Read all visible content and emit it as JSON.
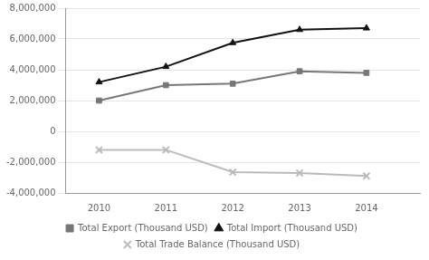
{
  "chart_data": {
    "type": "line",
    "x": [
      2010,
      2011,
      2012,
      2013,
      2014
    ],
    "series": [
      {
        "name": "Total Export (Thousand USD)",
        "color": "#777777",
        "marker": "square",
        "values": [
          2000000,
          3000000,
          3100000,
          3900000,
          3800000
        ]
      },
      {
        "name": "Total Import (Thousand USD)",
        "color": "#111111",
        "marker": "triangle",
        "values": [
          3200000,
          4200000,
          5750000,
          6600000,
          6700000
        ]
      },
      {
        "name": "Total Trade Balance (Thousand USD)",
        "color": "#bbbbbb",
        "marker": "x",
        "values": [
          -1200000,
          -1200000,
          -2650000,
          -2700000,
          -2900000
        ]
      }
    ],
    "xlim": [
      2009.5,
      2014.8
    ],
    "xticks": [
      2010,
      2011,
      2012,
      2013,
      2014
    ],
    "ylim": [
      -4000000,
      8000000
    ],
    "yticks": [
      {
        "value": -4000000,
        "label": "-4,000,000"
      },
      {
        "value": -2000000,
        "label": "-2,000,000"
      },
      {
        "value": 0,
        "label": "0"
      },
      {
        "value": 2000000,
        "label": "2,000,000"
      },
      {
        "value": 4000000,
        "label": "4,000,000"
      },
      {
        "value": 6000000,
        "label": "6,000,000"
      },
      {
        "value": 8000000,
        "label": "8,000,000"
      }
    ],
    "grid": "y",
    "legend": "bottom"
  }
}
